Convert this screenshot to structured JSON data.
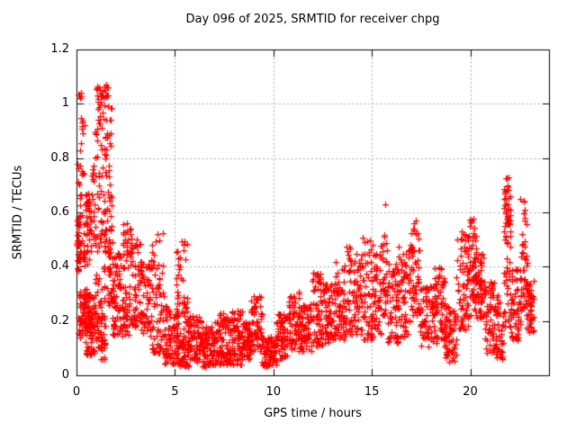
{
  "chart_data": {
    "type": "scatter",
    "title": "Day 096 of 2025, SRMTID for receiver chpg",
    "xlabel": "GPS time / hours",
    "ylabel": "SRMTID / TECUs",
    "xlim": [
      0,
      24
    ],
    "ylim": [
      0,
      1.2
    ],
    "xticks": [
      0,
      5,
      10,
      15,
      20
    ],
    "xtick_labels": [
      "0",
      "5",
      "10",
      "15",
      "20"
    ],
    "yticks": [
      0,
      0.2,
      0.4,
      0.6,
      0.8,
      1,
      1.2
    ],
    "ytick_labels": [
      "0",
      "0.2",
      "0.4",
      "0.6",
      "0.8",
      "1",
      "1.2"
    ],
    "grid": true,
    "legend": "none",
    "marker": "plus",
    "marker_color": "#ff0000",
    "grid_color": "#a8a8a8",
    "axis_color": "#000000",
    "background_color": "#ffffff",
    "series_name": "SRMTID",
    "representation": "dense scatter approximated by envelope segments [t_start_h, t_end_h, y_min, y_max, point_count, low_bias_exponent] plus explicit peak points",
    "seed": 42,
    "envelope": [
      [
        0.02,
        0.12,
        0.38,
        0.6,
        18,
        1.0
      ],
      [
        0.05,
        0.4,
        0.42,
        1.04,
        55,
        1.8
      ],
      [
        0.1,
        0.65,
        0.14,
        0.32,
        70,
        1.0
      ],
      [
        0.4,
        0.75,
        0.4,
        0.68,
        45,
        1.2
      ],
      [
        0.45,
        0.8,
        0.07,
        0.22,
        30,
        1.0
      ],
      [
        0.65,
        0.95,
        0.08,
        0.3,
        40,
        1.0
      ],
      [
        0.7,
        0.95,
        0.5,
        0.78,
        22,
        1.0
      ],
      [
        0.9,
        1.45,
        0.06,
        0.3,
        60,
        1.0
      ],
      [
        0.95,
        1.5,
        0.3,
        0.93,
        60,
        1.3
      ],
      [
        1.0,
        1.45,
        0.93,
        1.07,
        28,
        0.7
      ],
      [
        1.35,
        1.8,
        0.45,
        1.07,
        55,
        1.5
      ],
      [
        1.55,
        1.85,
        0.25,
        0.5,
        30,
        1.0
      ],
      [
        1.8,
        2.25,
        0.15,
        0.45,
        65,
        1.6
      ],
      [
        2.25,
        2.75,
        0.14,
        0.34,
        40,
        1.0
      ],
      [
        2.35,
        2.8,
        0.38,
        0.56,
        30,
        0.8
      ],
      [
        2.75,
        3.25,
        0.17,
        0.5,
        55,
        1.2
      ],
      [
        3.25,
        3.75,
        0.15,
        0.42,
        60,
        1.1
      ],
      [
        3.75,
        4.45,
        0.08,
        0.53,
        75,
        1.5
      ],
      [
        4.45,
        5.15,
        0.04,
        0.26,
        80,
        1.2
      ],
      [
        5.05,
        5.65,
        0.1,
        0.5,
        60,
        1.5
      ],
      [
        5.15,
        5.7,
        0.03,
        0.15,
        40,
        1.0
      ],
      [
        5.65,
        6.35,
        0.05,
        0.22,
        80,
        1.1
      ],
      [
        6.35,
        7.05,
        0.03,
        0.18,
        85,
        1.0
      ],
      [
        7.05,
        7.75,
        0.04,
        0.23,
        85,
        1.1
      ],
      [
        7.75,
        8.45,
        0.04,
        0.24,
        85,
        1.1
      ],
      [
        8.45,
        8.85,
        0.06,
        0.2,
        50,
        1.0
      ],
      [
        8.85,
        9.4,
        0.08,
        0.3,
        65,
        1.2
      ],
      [
        9.4,
        10.15,
        0.03,
        0.15,
        80,
        1.0
      ],
      [
        10.15,
        10.75,
        0.06,
        0.23,
        65,
        1.0
      ],
      [
        10.75,
        11.35,
        0.09,
        0.31,
        65,
        1.1
      ],
      [
        11.35,
        11.95,
        0.08,
        0.27,
        65,
        1.0
      ],
      [
        11.95,
        12.55,
        0.1,
        0.38,
        65,
        1.3
      ],
      [
        12.55,
        13.1,
        0.1,
        0.34,
        60,
        1.1
      ],
      [
        13.1,
        13.7,
        0.13,
        0.42,
        65,
        1.2
      ],
      [
        13.7,
        14.45,
        0.15,
        0.48,
        75,
        1.2
      ],
      [
        14.45,
        15.05,
        0.13,
        0.52,
        65,
        1.3
      ],
      [
        15.05,
        15.45,
        0.15,
        0.45,
        45,
        1.1
      ],
      [
        15.45,
        15.8,
        0.18,
        0.53,
        35,
        1.0
      ],
      [
        15.8,
        16.35,
        0.12,
        0.42,
        60,
        1.1
      ],
      [
        16.35,
        17.0,
        0.14,
        0.48,
        65,
        1.1
      ],
      [
        17.0,
        17.45,
        0.22,
        0.58,
        50,
        1.1
      ],
      [
        17.45,
        18.2,
        0.1,
        0.33,
        75,
        1.0
      ],
      [
        18.2,
        18.7,
        0.12,
        0.4,
        55,
        1.1
      ],
      [
        18.7,
        19.3,
        0.05,
        0.26,
        65,
        1.0
      ],
      [
        19.3,
        19.9,
        0.17,
        0.55,
        65,
        1.3
      ],
      [
        19.9,
        20.3,
        0.22,
        0.58,
        50,
        1.2
      ],
      [
        20.25,
        20.7,
        0.2,
        0.46,
        55,
        0.9
      ],
      [
        20.7,
        21.25,
        0.08,
        0.35,
        60,
        1.1
      ],
      [
        21.25,
        21.7,
        0.05,
        0.3,
        50,
        1.0
      ],
      [
        21.7,
        22.1,
        0.18,
        0.73,
        50,
        1.6
      ],
      [
        21.75,
        22.05,
        0.5,
        0.68,
        20,
        0.6
      ],
      [
        22.05,
        22.6,
        0.13,
        0.4,
        60,
        1.1
      ],
      [
        22.55,
        22.9,
        0.25,
        0.65,
        40,
        1.4
      ],
      [
        22.85,
        23.25,
        0.15,
        0.35,
        45,
        0.9
      ]
    ],
    "peaks": [
      [
        0.2,
        1.02
      ],
      [
        0.25,
        1.04
      ],
      [
        1.45,
        1.05
      ],
      [
        1.5,
        1.07
      ],
      [
        1.55,
        1.06
      ],
      [
        1.6,
        1.03
      ],
      [
        15.7,
        0.63
      ],
      [
        21.9,
        0.7
      ],
      [
        21.95,
        0.73
      ],
      [
        22.7,
        0.64
      ],
      [
        22.75,
        0.61
      ]
    ]
  }
}
